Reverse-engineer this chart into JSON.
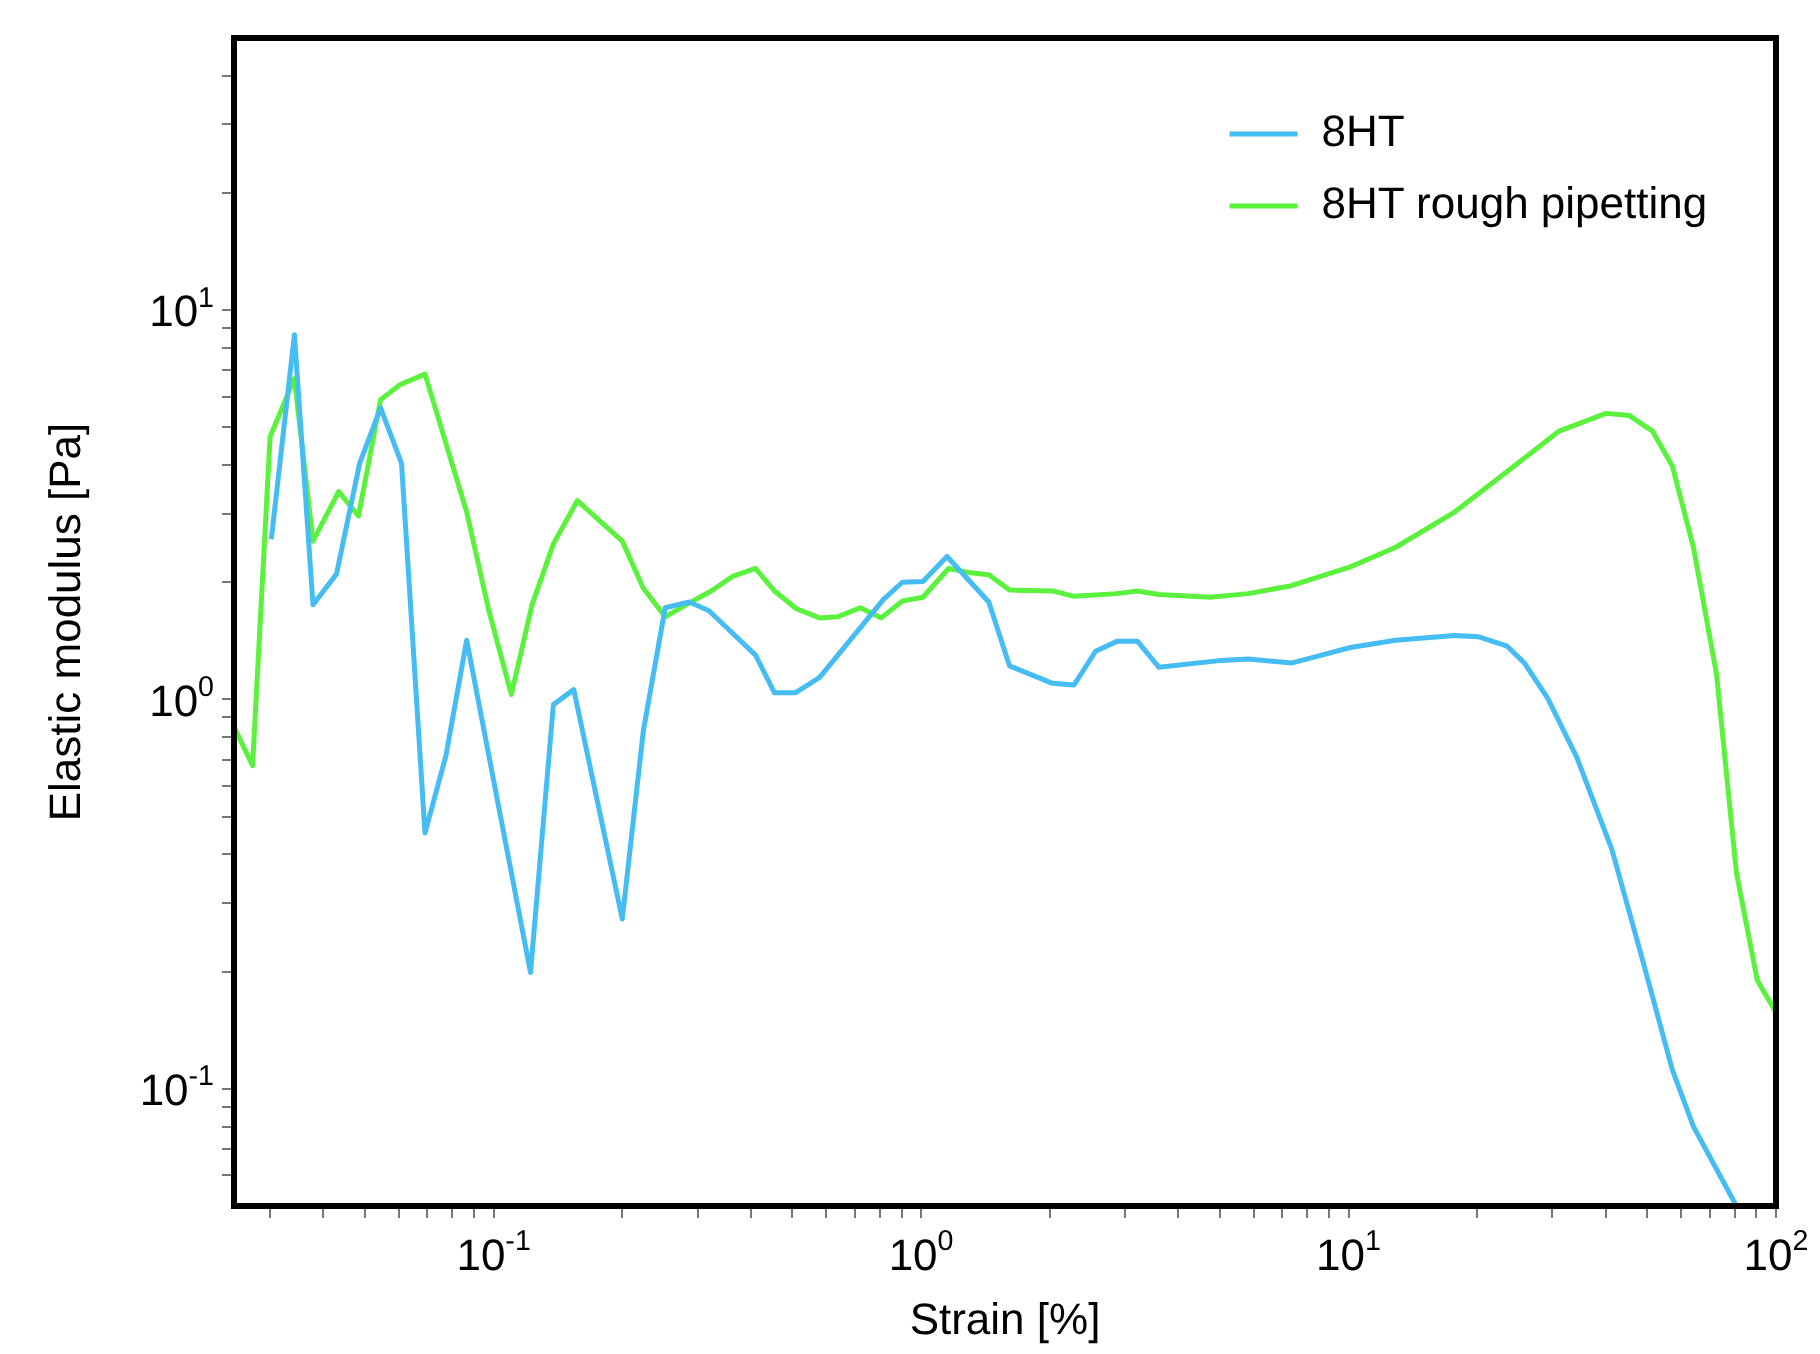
{
  "chart_data": {
    "type": "line",
    "xlabel": "Strain [%]",
    "ylabel": "Elastic modulus [Pa]",
    "log": "xy",
    "grid": false,
    "legend": "top right",
    "marker": "none",
    "line_style": "solid",
    "xlim": [
      0.0247,
      100
    ],
    "ylim": [
      0.05,
      50
    ],
    "xticks": [
      {
        "value": 0.03,
        "label": null
      },
      {
        "value": 0.04,
        "label": null
      },
      {
        "value": 0.05,
        "label": null
      },
      {
        "value": 0.06,
        "label": null
      },
      {
        "value": 0.07,
        "label": null
      },
      {
        "value": 0.08,
        "label": null
      },
      {
        "value": 0.09,
        "label": null
      },
      {
        "value": 0.1,
        "label": "10$^{-1}$"
      },
      {
        "value": 0.2,
        "label": null
      },
      {
        "value": 0.3,
        "label": null
      },
      {
        "value": 0.4,
        "label": null
      },
      {
        "value": 0.5,
        "label": null
      },
      {
        "value": 0.6,
        "label": null
      },
      {
        "value": 0.7,
        "label": null
      },
      {
        "value": 0.8,
        "label": null
      },
      {
        "value": 0.9,
        "label": null
      },
      {
        "value": 1,
        "label": "10$^{0}$"
      },
      {
        "value": 2,
        "label": null
      },
      {
        "value": 3,
        "label": null
      },
      {
        "value": 4,
        "label": null
      },
      {
        "value": 5,
        "label": null
      },
      {
        "value": 6,
        "label": null
      },
      {
        "value": 7,
        "label": null
      },
      {
        "value": 8,
        "label": null
      },
      {
        "value": 9,
        "label": null
      },
      {
        "value": 10,
        "label": "10$^{1}$"
      },
      {
        "value": 20,
        "label": null
      },
      {
        "value": 30,
        "label": null
      },
      {
        "value": 40,
        "label": null
      },
      {
        "value": 50,
        "label": null
      },
      {
        "value": 60,
        "label": null
      },
      {
        "value": 70,
        "label": null
      },
      {
        "value": 80,
        "label": null
      },
      {
        "value": 90,
        "label": null
      },
      {
        "value": 100,
        "label": "10$^{2}$"
      }
    ],
    "yticks": [
      {
        "value": 0.06,
        "label": null
      },
      {
        "value": 0.07,
        "label": null
      },
      {
        "value": 0.08,
        "label": null
      },
      {
        "value": 0.09,
        "label": null
      },
      {
        "value": 0.1,
        "label": "10$^{-1}$"
      },
      {
        "value": 0.2,
        "label": null
      },
      {
        "value": 0.3,
        "label": null
      },
      {
        "value": 0.4,
        "label": null
      },
      {
        "value": 0.5,
        "label": null
      },
      {
        "value": 0.6,
        "label": null
      },
      {
        "value": 0.7,
        "label": null
      },
      {
        "value": 0.8,
        "label": null
      },
      {
        "value": 0.9,
        "label": null
      },
      {
        "value": 1,
        "label": "10$^{0}$"
      },
      {
        "value": 2,
        "label": null
      },
      {
        "value": 3,
        "label": null
      },
      {
        "value": 4,
        "label": null
      },
      {
        "value": 5,
        "label": null
      },
      {
        "value": 6,
        "label": null
      },
      {
        "value": 7,
        "label": null
      },
      {
        "value": 8,
        "label": null
      },
      {
        "value": 9,
        "label": null
      },
      {
        "value": 10,
        "label": "10$^{1}$"
      },
      {
        "value": 20,
        "label": null
      },
      {
        "value": 30,
        "label": null
      },
      {
        "value": 40,
        "label": null
      }
    ],
    "series": [
      {
        "name": "8HT",
        "color": "#45bdf2",
        "x": [
          0.0302,
          0.0342,
          0.0378,
          0.0429,
          0.0486,
          0.0544,
          0.0609,
          0.0691,
          0.0773,
          0.0865,
          0.122,
          0.138,
          0.154,
          0.2,
          0.224,
          0.252,
          0.287,
          0.319,
          0.41,
          0.454,
          0.508,
          0.579,
          0.818,
          0.904,
          1.01,
          1.15,
          1.44,
          1.61,
          2.03,
          2.28,
          2.56,
          2.87,
          3.21,
          3.6,
          5.05,
          5.83,
          7.35,
          10.1,
          12.9,
          17.7,
          20.1,
          23.5,
          25.8,
          29.2,
          34.2,
          41.3,
          48.3,
          57.2,
          64.1,
          80.8
        ],
        "values": [
          2.58,
          8.65,
          1.75,
          2.1,
          4.04,
          5.61,
          4.04,
          0.454,
          0.715,
          1.42,
          0.199,
          0.97,
          1.06,
          0.273,
          0.83,
          1.72,
          1.78,
          1.69,
          1.3,
          1.04,
          1.04,
          1.14,
          1.81,
          2.0,
          2.01,
          2.33,
          1.78,
          1.22,
          1.1,
          1.09,
          1.33,
          1.41,
          1.41,
          1.21,
          1.26,
          1.27,
          1.24,
          1.36,
          1.42,
          1.46,
          1.45,
          1.37,
          1.24,
          1.01,
          0.71,
          0.412,
          0.222,
          0.112,
          0.08,
          0.05
        ]
      },
      {
        "name": "8HT rough pipetting",
        "color": "#5af23c",
        "x": [
          0.0247,
          0.0273,
          0.03,
          0.0342,
          0.0378,
          0.0434,
          0.0483,
          0.0544,
          0.0605,
          0.0691,
          0.0865,
          0.0975,
          0.11,
          0.123,
          0.138,
          0.157,
          0.2,
          0.224,
          0.252,
          0.287,
          0.323,
          0.362,
          0.41,
          0.454,
          0.511,
          0.579,
          0.637,
          0.721,
          0.807,
          0.904,
          1.01,
          1.16,
          1.29,
          1.44,
          1.61,
          2.03,
          2.28,
          2.87,
          3.21,
          3.6,
          4.74,
          5.83,
          7.35,
          10.1,
          12.9,
          17.7,
          23.5,
          31.1,
          40.0,
          45.4,
          51.4,
          57.2,
          64.1,
          72.6,
          80.8,
          90.4,
          100
        ],
        "values": [
          0.85,
          0.676,
          4.73,
          6.67,
          2.55,
          3.42,
          2.96,
          5.89,
          6.44,
          6.85,
          3.03,
          1.69,
          1.03,
          1.75,
          2.51,
          3.24,
          2.55,
          1.93,
          1.63,
          1.77,
          1.9,
          2.07,
          2.17,
          1.9,
          1.71,
          1.62,
          1.63,
          1.72,
          1.62,
          1.79,
          1.83,
          2.17,
          2.12,
          2.09,
          1.91,
          1.9,
          1.84,
          1.87,
          1.9,
          1.86,
          1.83,
          1.87,
          1.96,
          2.19,
          2.46,
          3.03,
          3.85,
          4.89,
          5.43,
          5.36,
          4.89,
          3.98,
          2.46,
          1.16,
          0.359,
          0.19,
          0.157
        ]
      }
    ]
  }
}
